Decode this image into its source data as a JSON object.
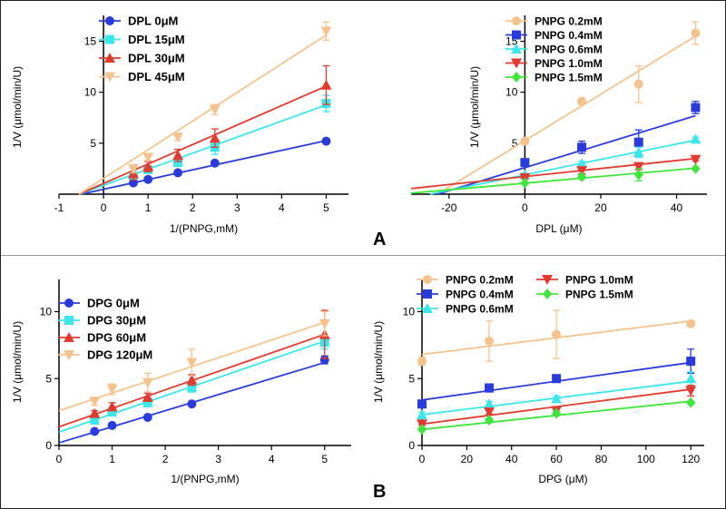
{
  "panel_labels": [
    "A",
    "B"
  ],
  "chart_data": [
    {
      "type": "scatter",
      "title": "",
      "xlabel": "1/(PNPG,mM)",
      "ylabel": "1/V (μmol/min/U)",
      "xlim": [
        -1,
        5.5
      ],
      "ylim": [
        0,
        17
      ],
      "xticks": [
        "-1",
        "0",
        "1",
        "2",
        "3",
        "4",
        "5"
      ],
      "yticks": [
        "5",
        "10",
        "15"
      ],
      "legend_position": "top-left",
      "series": [
        {
          "name": "DPL 0μM",
          "color": "#2b3bdb",
          "marker": "circle",
          "x": [
            0.67,
            1.0,
            1.67,
            2.5,
            5.0
          ],
          "y": [
            1.1,
            1.45,
            2.1,
            3.05,
            5.2
          ],
          "err": [
            0.1,
            0.1,
            0.1,
            0.15,
            0.2
          ],
          "fit": [
            [
              -0.5,
              0
            ],
            [
              5,
              5.25
            ]
          ]
        },
        {
          "name": "DPL 15μM",
          "color": "#3ce6ea",
          "marker": "square",
          "x": [
            0.67,
            1.0,
            1.67,
            2.5,
            5.0
          ],
          "y": [
            1.8,
            2.4,
            3.1,
            4.6,
            8.9
          ],
          "err": [
            0.3,
            0.3,
            0.3,
            0.7,
            0.8
          ],
          "fit": [
            [
              -0.55,
              0
            ],
            [
              5,
              8.75
            ]
          ]
        },
        {
          "name": "DPL 30μM",
          "color": "#e03b2e",
          "marker": "triangle-up",
          "x": [
            0.67,
            1.0,
            1.67,
            2.5,
            5.0
          ],
          "y": [
            2.0,
            2.7,
            3.8,
            5.5,
            10.7
          ],
          "err": [
            0.6,
            0.5,
            0.6,
            0.9,
            1.9
          ],
          "fit": [
            [
              -0.55,
              0
            ],
            [
              5,
              10.6
            ]
          ]
        },
        {
          "name": "DPL 45μM",
          "color": "#f5c48e",
          "marker": "triangle-down",
          "x": [
            0.67,
            1.0,
            1.67,
            2.5,
            5.0
          ],
          "y": [
            2.5,
            3.6,
            5.6,
            8.3,
            16.0
          ],
          "err": [
            0.4,
            0.3,
            0.3,
            0.5,
            0.9
          ],
          "fit": [
            [
              -0.55,
              0
            ],
            [
              5,
              15.6
            ]
          ]
        }
      ]
    },
    {
      "type": "scatter",
      "title": "",
      "xlabel": "DPL (μM)",
      "ylabel": "1/V (μmol/min/U)",
      "xlim": [
        -30,
        48
      ],
      "ylim": [
        0,
        17
      ],
      "xticks": [
        "-20",
        "0",
        "20",
        "40"
      ],
      "yticks": [
        "5",
        "10",
        "15"
      ],
      "legend_position": "top-left",
      "series": [
        {
          "name": "PNPG 0.2mM",
          "color": "#f5c48e",
          "marker": "circle",
          "x": [
            0,
            15,
            30,
            45
          ],
          "y": [
            5.2,
            9.1,
            10.8,
            15.8
          ],
          "err": [
            0.3,
            0.3,
            1.8,
            1.1
          ],
          "fit": [
            [
              -23,
              0
            ],
            [
              45,
              15.5
            ]
          ]
        },
        {
          "name": "PNPG 0.4mM",
          "color": "#2b3bdb",
          "marker": "square",
          "x": [
            0,
            15,
            30,
            45
          ],
          "y": [
            3.1,
            4.6,
            5.1,
            8.5
          ],
          "err": [
            0.3,
            0.6,
            1.2,
            0.6
          ],
          "fit": [
            [
              -23,
              0
            ],
            [
              45,
              7.7
            ]
          ]
        },
        {
          "name": "PNPG 0.6mM",
          "color": "#3ce6ea",
          "marker": "triangle-up",
          "x": [
            0,
            15,
            30,
            45
          ],
          "y": [
            1.9,
            3.0,
            4.1,
            5.4
          ],
          "err": [
            0.15,
            0.2,
            0.5,
            0.2
          ],
          "fit": [
            [
              -25,
              0
            ],
            [
              45,
              5.3
            ]
          ]
        },
        {
          "name": "PNPG 1.0mM",
          "color": "#e03b2e",
          "marker": "triangle-down",
          "x": [
            0,
            15,
            30,
            45
          ],
          "y": [
            1.6,
            2.3,
            2.7,
            3.4
          ],
          "err": [
            0.1,
            0.3,
            0.3,
            0.15
          ],
          "fit": [
            [
              -30,
              0.55
            ],
            [
              45,
              3.5
            ]
          ]
        },
        {
          "name": "PNPG 1.5mM",
          "color": "#3ee63a",
          "marker": "diamond",
          "x": [
            0,
            15,
            30,
            45
          ],
          "y": [
            1.1,
            1.7,
            1.9,
            2.5
          ],
          "err": [
            0.1,
            0.2,
            0.6,
            0.1
          ],
          "fit": [
            [
              -30,
              0.1
            ],
            [
              45,
              2.55
            ]
          ]
        }
      ]
    },
    {
      "type": "scatter",
      "title": "",
      "xlabel": "1/(PNPG,mM)",
      "ylabel": "1/V (μmol/min/U)",
      "xlim": [
        0,
        5.5
      ],
      "ylim": [
        0,
        12
      ],
      "xticks": [
        "0",
        "1",
        "2",
        "3",
        "4",
        "5"
      ],
      "yticks": [
        "0",
        "5",
        "10"
      ],
      "legend_position": "top-left",
      "series": [
        {
          "name": "DPG 0μM",
          "color": "#2b3bdb",
          "marker": "circle",
          "x": [
            0.67,
            1.0,
            1.67,
            2.5,
            5.0
          ],
          "y": [
            1.05,
            1.5,
            2.1,
            3.1,
            6.4
          ],
          "err": [
            0.1,
            0.1,
            0.1,
            0.1,
            0.3
          ],
          "fit": [
            [
              0,
              0.2
            ],
            [
              5,
              6.2
            ]
          ]
        },
        {
          "name": "DPG 30μM",
          "color": "#3ce6ea",
          "marker": "square",
          "x": [
            0.67,
            1.0,
            1.67,
            2.5,
            5.0
          ],
          "y": [
            1.9,
            2.5,
            3.2,
            4.3,
            7.7
          ],
          "err": [
            0.2,
            0.2,
            0.3,
            0.3,
            0.5
          ],
          "fit": [
            [
              0,
              1.0
            ],
            [
              5,
              7.8
            ]
          ]
        },
        {
          "name": "DPG 60μM",
          "color": "#e03b2e",
          "marker": "triangle-up",
          "x": [
            0.67,
            1.0,
            1.67,
            2.5,
            5.0
          ],
          "y": [
            2.4,
            2.9,
            3.6,
            4.9,
            8.3
          ],
          "err": [
            0.2,
            0.3,
            0.3,
            0.4,
            1.8
          ],
          "fit": [
            [
              0,
              1.4
            ],
            [
              5,
              8.3
            ]
          ]
        },
        {
          "name": "DPG 120μM",
          "color": "#f5c48e",
          "marker": "triangle-down",
          "x": [
            0.67,
            1.0,
            1.67,
            2.5,
            5.0
          ],
          "y": [
            3.3,
            4.2,
            4.7,
            6.2,
            9.1
          ],
          "err": [
            0.3,
            0.4,
            0.7,
            1.0,
            0.9
          ],
          "fit": [
            [
              0,
              2.6
            ],
            [
              5,
              9.2
            ]
          ]
        }
      ]
    },
    {
      "type": "scatter",
      "title": "",
      "xlabel": "DPG (μM)",
      "ylabel": "1/V (μmol/min/U)",
      "xlim": [
        0,
        126
      ],
      "ylim": [
        0,
        12
      ],
      "xticks": [
        "0",
        "20",
        "40",
        "60",
        "80",
        "100",
        "120"
      ],
      "yticks": [
        "0",
        "5",
        "10"
      ],
      "legend_position": "top",
      "series": [
        {
          "name": "PNPG 0.2mM",
          "color": "#f5c48e",
          "marker": "circle",
          "x": [
            0,
            30,
            60,
            120
          ],
          "y": [
            6.3,
            7.8,
            8.3,
            9.1
          ],
          "err": [
            0.3,
            1.5,
            1.8,
            0.2
          ],
          "fit": [
            [
              0,
              6.8
            ],
            [
              120,
              9.3
            ]
          ]
        },
        {
          "name": "PNPG 0.4mM",
          "color": "#2b3bdb",
          "marker": "square",
          "x": [
            0,
            30,
            60,
            120
          ],
          "y": [
            3.1,
            4.3,
            5.0,
            6.3
          ],
          "err": [
            0.2,
            0.3,
            0.2,
            0.9
          ],
          "fit": [
            [
              0,
              3.4
            ],
            [
              120,
              6.2
            ]
          ]
        },
        {
          "name": "PNPG 0.6mM",
          "color": "#3ce6ea",
          "marker": "triangle-up",
          "x": [
            0,
            30,
            60,
            120
          ],
          "y": [
            2.3,
            3.1,
            3.5,
            5.0
          ],
          "err": [
            0.2,
            0.2,
            0.2,
            0.5
          ],
          "fit": [
            [
              0,
              2.3
            ],
            [
              120,
              4.8
            ]
          ]
        },
        {
          "name": "PNPG 1.0mM",
          "color": "#e03b2e",
          "marker": "triangle-down",
          "x": [
            0,
            30,
            60,
            120
          ],
          "y": [
            1.6,
            2.5,
            2.6,
            4.1
          ],
          "err": [
            0.1,
            0.15,
            0.3,
            0.4
          ],
          "fit": [
            [
              0,
              1.6
            ],
            [
              120,
              4.2
            ]
          ]
        },
        {
          "name": "PNPG 1.5mM",
          "color": "#3ee63a",
          "marker": "diamond",
          "x": [
            0,
            30,
            60,
            120
          ],
          "y": [
            1.2,
            1.9,
            2.4,
            3.2
          ],
          "err": [
            0.1,
            0.1,
            0.1,
            0.1
          ],
          "fit": [
            [
              0,
              1.2
            ],
            [
              120,
              3.3
            ]
          ]
        }
      ]
    }
  ]
}
